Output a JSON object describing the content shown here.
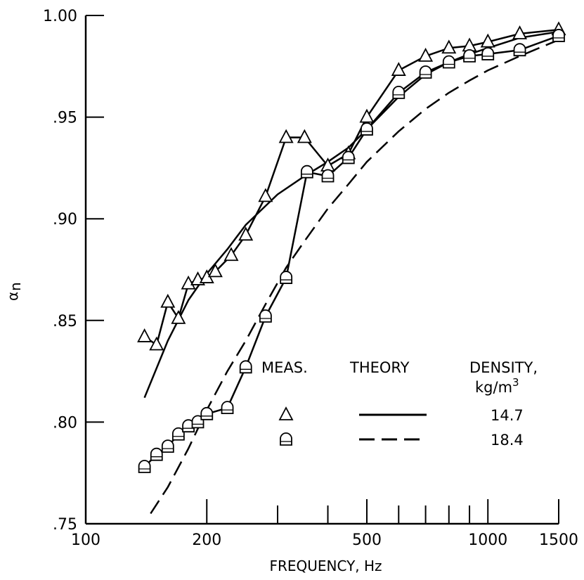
{
  "chart_data": {
    "type": "line",
    "xlabel": "FREQUENCY, Hz",
    "ylabel": "α",
    "ylabel_subscript": "n",
    "x_scale": "log",
    "xlim": [
      100,
      1500
    ],
    "ylim": [
      0.75,
      1.0
    ],
    "x_tick_values": [
      100,
      200,
      500,
      1000,
      1500
    ],
    "x_tick_labels": [
      "100",
      "200",
      "500",
      "1000",
      "1500"
    ],
    "x_minor_ticks": [
      300,
      400,
      600,
      700,
      800,
      900
    ],
    "y_tick_values": [
      0.75,
      0.8,
      0.85,
      0.9,
      0.95,
      1.0
    ],
    "y_tick_labels": [
      ".75",
      ".80",
      ".85",
      ".90",
      ".95",
      "1.00"
    ],
    "grid": false,
    "legend": {
      "placement": "bottom-right",
      "headers": {
        "meas": "MEAS.",
        "theory": "THEORY",
        "density": "DENSITY,",
        "density_unit": "kg/m",
        "density_unit_exp": "3"
      },
      "entries": [
        {
          "marker": "triangle",
          "line": "solid",
          "density": "14.7"
        },
        {
          "marker": "rounded-square",
          "line": "dashed",
          "density": "18.4"
        }
      ]
    },
    "series": [
      {
        "kind": "measured",
        "marker": "triangle",
        "x": [
          140,
          150,
          160,
          170,
          180,
          190,
          200,
          210,
          230,
          250,
          280,
          315,
          350,
          400,
          450,
          500,
          600,
          700,
          800,
          900,
          1000,
          1200,
          1500
        ],
        "y": [
          0.842,
          0.838,
          0.859,
          0.851,
          0.868,
          0.87,
          0.871,
          0.874,
          0.882,
          0.892,
          0.911,
          0.94,
          0.94,
          0.926,
          0.932,
          0.95,
          0.973,
          0.98,
          0.984,
          0.985,
          0.987,
          0.991,
          0.993
        ]
      },
      {
        "kind": "measured",
        "marker": "rounded-square",
        "x": [
          140,
          150,
          160,
          170,
          180,
          190,
          200,
          225,
          250,
          280,
          315,
          355,
          400,
          450,
          500,
          600,
          700,
          800,
          900,
          1000,
          1200,
          1500
        ],
        "y": [
          0.778,
          0.784,
          0.788,
          0.794,
          0.798,
          0.8,
          0.804,
          0.807,
          0.827,
          0.852,
          0.871,
          0.923,
          0.921,
          0.93,
          0.944,
          0.962,
          0.972,
          0.977,
          0.98,
          0.981,
          0.983,
          0.99
        ]
      },
      {
        "kind": "theory",
        "line": "solid",
        "x": [
          140,
          160,
          180,
          200,
          225,
          250,
          300,
          350,
          400,
          450,
          500,
          600,
          700,
          800,
          900,
          1000,
          1200,
          1500
        ],
        "y": [
          0.812,
          0.84,
          0.86,
          0.873,
          0.885,
          0.897,
          0.912,
          0.921,
          0.928,
          0.935,
          0.944,
          0.96,
          0.971,
          0.977,
          0.981,
          0.984,
          0.989,
          0.992
        ]
      },
      {
        "kind": "theory",
        "line": "dashed",
        "x": [
          145,
          160,
          180,
          200,
          225,
          250,
          280,
          315,
          350,
          400,
          450,
          500,
          600,
          700,
          800,
          900,
          1000,
          1200,
          1500
        ],
        "y": [
          0.755,
          0.768,
          0.787,
          0.806,
          0.825,
          0.84,
          0.858,
          0.876,
          0.889,
          0.905,
          0.917,
          0.928,
          0.943,
          0.954,
          0.962,
          0.968,
          0.973,
          0.98,
          0.988
        ]
      }
    ]
  }
}
